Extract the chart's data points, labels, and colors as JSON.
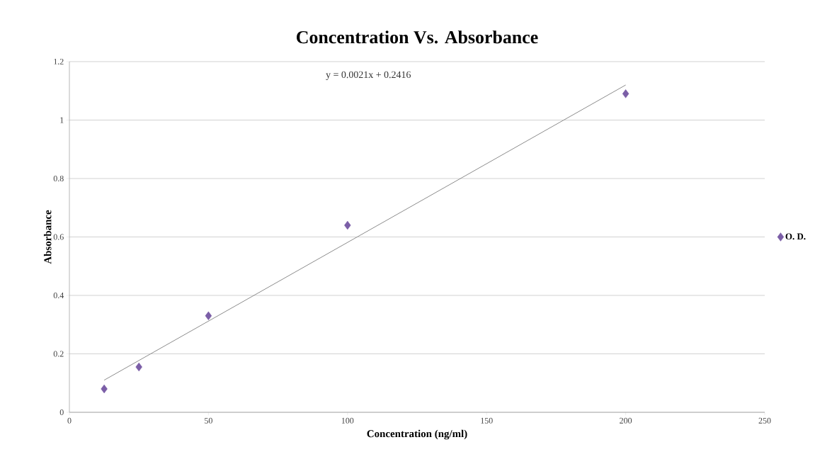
{
  "chart_data": {
    "type": "scatter",
    "title": "Concentration Vs. Absorbance",
    "xlabel": "Concentration  (ng/ml)",
    "ylabel": "Absorbance",
    "series": [
      {
        "name": "O. D.",
        "color": "#7b5ea7",
        "x": [
          12.5,
          25,
          50,
          100,
          200
        ],
        "values": [
          0.08,
          0.155,
          0.33,
          0.64,
          1.09
        ],
        "marker": "diamond"
      },
      {
        "type": "line",
        "color": "#8c8c8c",
        "x": [
          12.5,
          200
        ],
        "values": [
          0.11,
          1.12
        ],
        "marker": "none",
        "line_style": "solid"
      }
    ],
    "annotations": [
      "y = 0.0021x + 0.2416"
    ],
    "xlim": [
      0,
      250
    ],
    "xticks": [
      0,
      50,
      100,
      150,
      200,
      250
    ],
    "ylim": [
      0,
      1.2
    ],
    "yticks": [
      0,
      0.2,
      0.4,
      0.6,
      0.8,
      1,
      1.2
    ],
    "grid": "y",
    "legend": "right"
  }
}
